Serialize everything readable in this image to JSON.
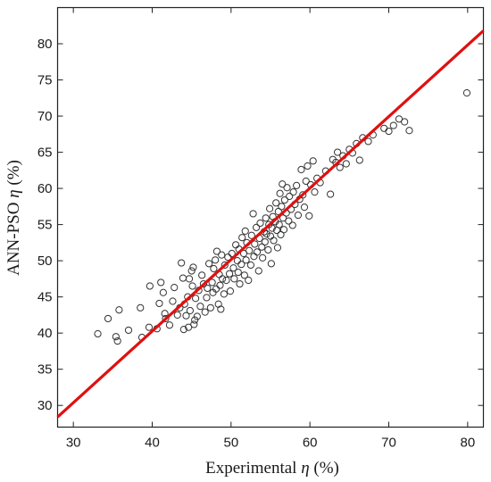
{
  "chart_data": {
    "type": "scatter",
    "xlabel_prefix": "Experimental ",
    "xlabel_symbol": "η",
    "xlabel_suffix": " (%)",
    "ylabel_prefix": "ANN-PSO ",
    "ylabel_symbol": "η",
    "ylabel_suffix": " (%)",
    "xlim": [
      28,
      82
    ],
    "ylim": [
      27,
      85
    ],
    "x_ticks": [
      "30",
      "40",
      "50",
      "60",
      "70",
      "80"
    ],
    "x_tick_values": [
      30,
      40,
      50,
      60,
      70,
      80
    ],
    "y_ticks": [
      "30",
      "35",
      "40",
      "45",
      "50",
      "55",
      "60",
      "65",
      "70",
      "75",
      "80"
    ],
    "y_tick_values": [
      30,
      35,
      40,
      45,
      50,
      55,
      60,
      65,
      70,
      75,
      80
    ],
    "grid": false,
    "fit_line": {
      "color": "#e01010",
      "x": [
        28,
        82
      ],
      "y": [
        28.4,
        81.8
      ]
    },
    "marker_color": "#333333",
    "series": [
      {
        "points": [
          [
            33.1,
            39.9
          ],
          [
            34.4,
            42.0
          ],
          [
            35.4,
            39.5
          ],
          [
            35.6,
            38.9
          ],
          [
            35.8,
            43.2
          ],
          [
            37.0,
            40.4
          ],
          [
            38.5,
            43.5
          ],
          [
            38.7,
            39.4
          ],
          [
            39.6,
            40.8
          ],
          [
            39.7,
            46.5
          ],
          [
            40.6,
            40.6
          ],
          [
            40.9,
            44.1
          ],
          [
            41.1,
            47.0
          ],
          [
            41.4,
            45.6
          ],
          [
            41.6,
            42.7
          ],
          [
            41.7,
            42.0
          ],
          [
            42.2,
            41.1
          ],
          [
            42.6,
            44.4
          ],
          [
            42.8,
            46.3
          ],
          [
            43.2,
            42.5
          ],
          [
            43.5,
            43.5
          ],
          [
            43.7,
            49.7
          ],
          [
            43.9,
            47.6
          ],
          [
            44.0,
            40.5
          ],
          [
            44.1,
            44.0
          ],
          [
            44.3,
            42.4
          ],
          [
            44.5,
            45.0
          ],
          [
            44.6,
            40.8
          ],
          [
            44.7,
            47.5
          ],
          [
            44.8,
            43.1
          ],
          [
            45.0,
            48.6
          ],
          [
            45.1,
            46.5
          ],
          [
            45.2,
            49.1
          ],
          [
            45.3,
            41.2
          ],
          [
            45.4,
            41.8
          ],
          [
            45.5,
            44.8
          ],
          [
            45.7,
            42.3
          ],
          [
            45.9,
            45.9
          ],
          [
            46.1,
            43.7
          ],
          [
            46.3,
            48.0
          ],
          [
            46.5,
            46.8
          ],
          [
            46.7,
            42.9
          ],
          [
            46.9,
            44.9
          ],
          [
            47.0,
            46.2
          ],
          [
            47.2,
            49.6
          ],
          [
            47.4,
            43.5
          ],
          [
            47.6,
            47.0
          ],
          [
            47.7,
            45.6
          ],
          [
            47.8,
            48.9
          ],
          [
            48.0,
            50.1
          ],
          [
            48.1,
            46.1
          ],
          [
            48.2,
            51.3
          ],
          [
            48.4,
            44.0
          ],
          [
            48.5,
            48.1
          ],
          [
            48.6,
            46.6
          ],
          [
            48.7,
            43.3
          ],
          [
            48.8,
            50.8
          ],
          [
            48.9,
            47.5
          ],
          [
            49.1,
            45.4
          ],
          [
            49.2,
            49.4
          ],
          [
            49.4,
            47.3
          ],
          [
            49.6,
            50.5
          ],
          [
            49.8,
            48.2
          ],
          [
            49.9,
            45.8
          ],
          [
            50.1,
            51.0
          ],
          [
            50.3,
            49.0
          ],
          [
            50.4,
            47.5
          ],
          [
            50.6,
            52.2
          ],
          [
            50.8,
            50.0
          ],
          [
            50.9,
            48.4
          ],
          [
            51.0,
            51.6
          ],
          [
            51.1,
            46.8
          ],
          [
            51.3,
            49.5
          ],
          [
            51.4,
            53.2
          ],
          [
            51.6,
            51.0
          ],
          [
            51.7,
            48.0
          ],
          [
            51.8,
            54.1
          ],
          [
            51.9,
            50.1
          ],
          [
            52.0,
            52.5
          ],
          [
            52.2,
            47.3
          ],
          [
            52.3,
            51.4
          ],
          [
            52.5,
            49.4
          ],
          [
            52.6,
            53.5
          ],
          [
            52.8,
            56.5
          ],
          [
            52.9,
            50.6
          ],
          [
            53.0,
            52.3
          ],
          [
            53.2,
            54.6
          ],
          [
            53.3,
            51.2
          ],
          [
            53.5,
            48.6
          ],
          [
            53.6,
            53.1
          ],
          [
            53.7,
            55.2
          ],
          [
            53.9,
            51.9
          ],
          [
            54.0,
            50.4
          ],
          [
            54.2,
            54.0
          ],
          [
            54.3,
            52.6
          ],
          [
            54.4,
            55.9
          ],
          [
            54.5,
            53.7
          ],
          [
            54.7,
            51.5
          ],
          [
            54.8,
            55.0
          ],
          [
            54.9,
            57.2
          ],
          [
            55.0,
            53.4
          ],
          [
            55.1,
            49.6
          ],
          [
            55.2,
            54.5
          ],
          [
            55.3,
            56.1
          ],
          [
            55.4,
            52.8
          ],
          [
            55.6,
            55.4
          ],
          [
            55.7,
            58.0
          ],
          [
            55.8,
            54.2
          ],
          [
            55.9,
            51.8
          ],
          [
            56.0,
            56.8
          ],
          [
            56.1,
            55.0
          ],
          [
            56.2,
            59.3
          ],
          [
            56.3,
            53.6
          ],
          [
            56.4,
            57.5
          ],
          [
            56.5,
            60.6
          ],
          [
            56.6,
            55.9
          ],
          [
            56.7,
            54.3
          ],
          [
            56.8,
            58.4
          ],
          [
            57.0,
            56.6
          ],
          [
            57.1,
            60.1
          ],
          [
            57.3,
            55.5
          ],
          [
            57.4,
            58.9
          ],
          [
            57.6,
            57.1
          ],
          [
            57.8,
            54.9
          ],
          [
            57.9,
            59.5
          ],
          [
            58.1,
            57.8
          ],
          [
            58.3,
            60.4
          ],
          [
            58.5,
            56.3
          ],
          [
            58.7,
            58.5
          ],
          [
            58.9,
            62.6
          ],
          [
            59.1,
            59.1
          ],
          [
            59.3,
            57.4
          ],
          [
            59.5,
            61.0
          ],
          [
            59.7,
            63.1
          ],
          [
            59.9,
            56.2
          ],
          [
            60.1,
            60.5
          ],
          [
            60.4,
            63.8
          ],
          [
            60.6,
            59.5
          ],
          [
            60.9,
            61.4
          ],
          [
            61.3,
            60.8
          ],
          [
            62.0,
            62.4
          ],
          [
            62.6,
            59.2
          ],
          [
            62.9,
            64.0
          ],
          [
            63.3,
            63.6
          ],
          [
            63.5,
            65.0
          ],
          [
            63.8,
            62.9
          ],
          [
            64.2,
            64.5
          ],
          [
            64.6,
            63.4
          ],
          [
            65.0,
            65.4
          ],
          [
            65.4,
            64.9
          ],
          [
            65.9,
            66.2
          ],
          [
            66.3,
            63.9
          ],
          [
            66.7,
            67.0
          ],
          [
            67.4,
            66.5
          ],
          [
            68.0,
            67.4
          ],
          [
            69.4,
            68.3
          ],
          [
            70.0,
            67.9
          ],
          [
            70.6,
            68.7
          ],
          [
            71.3,
            69.6
          ],
          [
            72.0,
            69.2
          ],
          [
            72.6,
            68.0
          ],
          [
            79.9,
            73.2
          ]
        ]
      }
    ]
  }
}
